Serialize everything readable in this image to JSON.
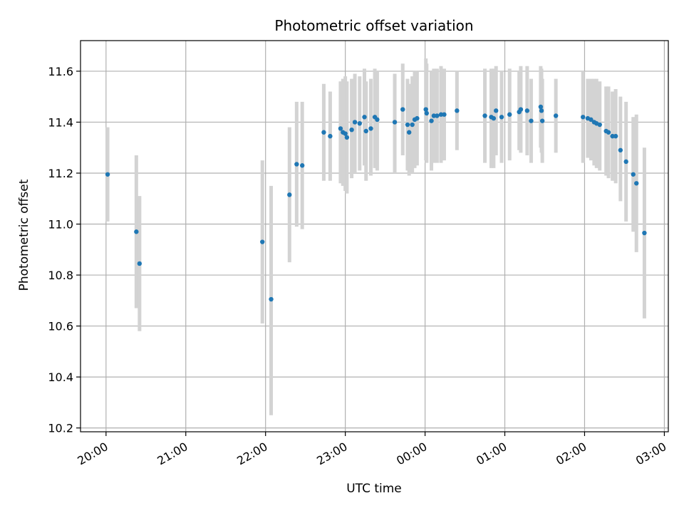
{
  "chart_data": {
    "type": "scatter",
    "title": "Photometric offset variation",
    "xlabel": "UTC time",
    "ylabel": "Photometric offset",
    "x_unit": "hours relative to 00:00 UTC",
    "xlim": [
      -4.32,
      3.05
    ],
    "ylim": [
      10.185,
      11.72
    ],
    "x_ticks": [
      -4,
      -3,
      -2,
      -1,
      0,
      1,
      2,
      3
    ],
    "x_tick_labels": [
      "20:00",
      "21:00",
      "22:00",
      "23:00",
      "00:00",
      "01:00",
      "02:00",
      "03:00"
    ],
    "y_ticks": [
      10.2,
      10.4,
      10.6,
      10.8,
      11.0,
      11.2,
      11.4,
      11.6
    ],
    "y_tick_labels": [
      "10.2",
      "10.4",
      "10.6",
      "10.8",
      "11.0",
      "11.2",
      "11.4",
      "11.6"
    ],
    "grid": true,
    "colors": {
      "point": "#1f77b4",
      "errorbar": "#d3d3d3",
      "grid": "#b0b0b0"
    },
    "points": [
      {
        "x": -3.98,
        "y": 11.195,
        "lo": 11.01,
        "hi": 11.38
      },
      {
        "x": -3.62,
        "y": 10.97,
        "lo": 10.67,
        "hi": 11.27
      },
      {
        "x": -3.58,
        "y": 10.845,
        "lo": 10.58,
        "hi": 11.11
      },
      {
        "x": -2.04,
        "y": 10.93,
        "lo": 10.61,
        "hi": 11.25
      },
      {
        "x": -1.93,
        "y": 10.705,
        "lo": 10.25,
        "hi": 11.15
      },
      {
        "x": -1.7,
        "y": 11.115,
        "lo": 10.85,
        "hi": 11.38
      },
      {
        "x": -1.61,
        "y": 11.235,
        "lo": 10.99,
        "hi": 11.48
      },
      {
        "x": -1.54,
        "y": 11.23,
        "lo": 10.98,
        "hi": 11.48
      },
      {
        "x": -1.27,
        "y": 11.36,
        "lo": 11.17,
        "hi": 11.55
      },
      {
        "x": -1.19,
        "y": 11.345,
        "lo": 11.17,
        "hi": 11.52
      },
      {
        "x": -1.06,
        "y": 11.375,
        "lo": 11.16,
        "hi": 11.56
      },
      {
        "x": -1.03,
        "y": 11.36,
        "lo": 11.15,
        "hi": 11.57
      },
      {
        "x": -1.0,
        "y": 11.355,
        "lo": 11.13,
        "hi": 11.58
      },
      {
        "x": -0.98,
        "y": 11.34,
        "lo": 11.12,
        "hi": 11.56
      },
      {
        "x": -0.92,
        "y": 11.37,
        "lo": 11.18,
        "hi": 11.57
      },
      {
        "x": -0.88,
        "y": 11.4,
        "lo": 11.2,
        "hi": 11.59
      },
      {
        "x": -0.82,
        "y": 11.395,
        "lo": 11.21,
        "hi": 11.58
      },
      {
        "x": -0.76,
        "y": 11.42,
        "lo": 11.23,
        "hi": 11.61
      },
      {
        "x": -0.74,
        "y": 11.365,
        "lo": 11.17,
        "hi": 11.56
      },
      {
        "x": -0.68,
        "y": 11.375,
        "lo": 11.19,
        "hi": 11.57
      },
      {
        "x": -0.63,
        "y": 11.42,
        "lo": 11.22,
        "hi": 11.61
      },
      {
        "x": -0.6,
        "y": 11.41,
        "lo": 11.21,
        "hi": 11.6
      },
      {
        "x": -0.38,
        "y": 11.4,
        "lo": 11.2,
        "hi": 11.59
      },
      {
        "x": -0.28,
        "y": 11.45,
        "lo": 11.27,
        "hi": 11.63
      },
      {
        "x": -0.22,
        "y": 11.39,
        "lo": 11.21,
        "hi": 11.57
      },
      {
        "x": -0.2,
        "y": 11.36,
        "lo": 11.19,
        "hi": 11.55
      },
      {
        "x": -0.16,
        "y": 11.39,
        "lo": 11.2,
        "hi": 11.58
      },
      {
        "x": -0.13,
        "y": 11.41,
        "lo": 11.22,
        "hi": 11.6
      },
      {
        "x": -0.1,
        "y": 11.415,
        "lo": 11.23,
        "hi": 11.6
      },
      {
        "x": 0.01,
        "y": 11.45,
        "lo": 11.25,
        "hi": 11.65
      },
      {
        "x": 0.02,
        "y": 11.435,
        "lo": 11.24,
        "hi": 11.63
      },
      {
        "x": 0.08,
        "y": 11.405,
        "lo": 11.21,
        "hi": 11.6
      },
      {
        "x": 0.11,
        "y": 11.425,
        "lo": 11.24,
        "hi": 11.61
      },
      {
        "x": 0.15,
        "y": 11.425,
        "lo": 11.24,
        "hi": 11.61
      },
      {
        "x": 0.2,
        "y": 11.43,
        "lo": 11.24,
        "hi": 11.62
      },
      {
        "x": 0.24,
        "y": 11.43,
        "lo": 11.25,
        "hi": 11.61
      },
      {
        "x": 0.4,
        "y": 11.445,
        "lo": 11.29,
        "hi": 11.6
      },
      {
        "x": 0.75,
        "y": 11.425,
        "lo": 11.24,
        "hi": 11.61
      },
      {
        "x": 0.83,
        "y": 11.42,
        "lo": 11.22,
        "hi": 11.61
      },
      {
        "x": 0.86,
        "y": 11.415,
        "lo": 11.22,
        "hi": 11.61
      },
      {
        "x": 0.89,
        "y": 11.445,
        "lo": 11.27,
        "hi": 11.62
      },
      {
        "x": 0.96,
        "y": 11.42,
        "lo": 11.24,
        "hi": 11.6
      },
      {
        "x": 1.06,
        "y": 11.43,
        "lo": 11.25,
        "hi": 11.61
      },
      {
        "x": 1.18,
        "y": 11.44,
        "lo": 11.29,
        "hi": 11.6
      },
      {
        "x": 1.2,
        "y": 11.45,
        "lo": 11.28,
        "hi": 11.62
      },
      {
        "x": 1.28,
        "y": 11.445,
        "lo": 11.27,
        "hi": 11.62
      },
      {
        "x": 1.33,
        "y": 11.405,
        "lo": 11.24,
        "hi": 11.57
      },
      {
        "x": 1.45,
        "y": 11.46,
        "lo": 11.3,
        "hi": 11.62
      },
      {
        "x": 1.46,
        "y": 11.445,
        "lo": 11.28,
        "hi": 11.61
      },
      {
        "x": 1.47,
        "y": 11.405,
        "lo": 11.24,
        "hi": 11.57
      },
      {
        "x": 1.64,
        "y": 11.425,
        "lo": 11.28,
        "hi": 11.57
      },
      {
        "x": 1.98,
        "y": 11.42,
        "lo": 11.24,
        "hi": 11.6
      },
      {
        "x": 2.04,
        "y": 11.415,
        "lo": 11.26,
        "hi": 11.57
      },
      {
        "x": 2.08,
        "y": 11.41,
        "lo": 11.25,
        "hi": 11.57
      },
      {
        "x": 2.12,
        "y": 11.4,
        "lo": 11.23,
        "hi": 11.57
      },
      {
        "x": 2.15,
        "y": 11.395,
        "lo": 11.22,
        "hi": 11.57
      },
      {
        "x": 2.19,
        "y": 11.39,
        "lo": 11.21,
        "hi": 11.56
      },
      {
        "x": 2.27,
        "y": 11.365,
        "lo": 11.19,
        "hi": 11.54
      },
      {
        "x": 2.3,
        "y": 11.36,
        "lo": 11.18,
        "hi": 11.54
      },
      {
        "x": 2.35,
        "y": 11.345,
        "lo": 11.17,
        "hi": 11.52
      },
      {
        "x": 2.39,
        "y": 11.345,
        "lo": 11.16,
        "hi": 11.53
      },
      {
        "x": 2.45,
        "y": 11.29,
        "lo": 11.09,
        "hi": 11.5
      },
      {
        "x": 2.52,
        "y": 11.245,
        "lo": 11.01,
        "hi": 11.48
      },
      {
        "x": 2.61,
        "y": 11.195,
        "lo": 10.97,
        "hi": 11.42
      },
      {
        "x": 2.65,
        "y": 11.16,
        "lo": 10.89,
        "hi": 11.43
      },
      {
        "x": 2.75,
        "y": 10.965,
        "lo": 10.63,
        "hi": 11.3
      }
    ]
  }
}
